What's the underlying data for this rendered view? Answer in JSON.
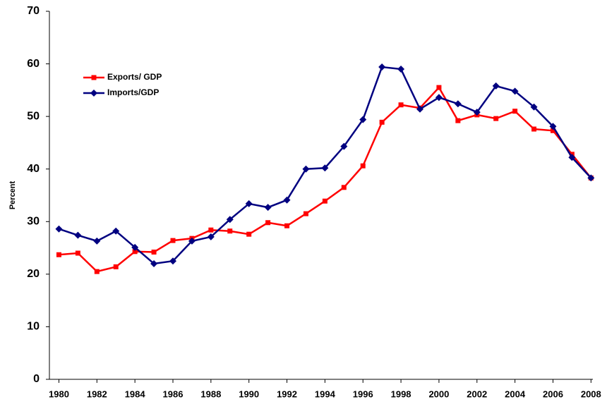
{
  "chart_data": {
    "type": "line",
    "y_label": "Percent",
    "x": [
      1980,
      1981,
      1982,
      1983,
      1984,
      1985,
      1986,
      1987,
      1988,
      1989,
      1990,
      1991,
      1992,
      1993,
      1994,
      1995,
      1996,
      1997,
      1998,
      1999,
      2000,
      2001,
      2002,
      2003,
      2004,
      2005,
      2006,
      2007,
      2008
    ],
    "series": [
      {
        "name": "Exports/ GDP",
        "color": "#ff0000",
        "marker": "square",
        "values": [
          23.7,
          24.0,
          20.5,
          21.4,
          24.3,
          24.2,
          26.4,
          26.8,
          28.4,
          28.2,
          27.6,
          29.8,
          29.2,
          31.5,
          33.9,
          36.5,
          40.6,
          48.9,
          52.2,
          51.6,
          55.5,
          49.2,
          50.3,
          49.6,
          51.0,
          47.6,
          47.3,
          42.8,
          38.3
        ]
      },
      {
        "name": "Imports/GDP",
        "color": "#000080",
        "marker": "diamond",
        "values": [
          28.6,
          27.4,
          26.3,
          28.2,
          25.1,
          22.0,
          22.5,
          26.3,
          27.1,
          30.4,
          33.4,
          32.7,
          34.1,
          40.0,
          40.2,
          44.3,
          49.4,
          59.4,
          59.0,
          51.4,
          53.6,
          52.4,
          50.8,
          55.8,
          54.8,
          51.8,
          48.1,
          42.2,
          38.3
        ]
      }
    ],
    "xlim": [
      1979.5,
      2008.1
    ],
    "xticks": [
      1980,
      1982,
      1984,
      1986,
      1988,
      1990,
      1992,
      1994,
      1996,
      1998,
      2000,
      2002,
      2004,
      2006,
      2008
    ],
    "ylim": [
      0,
      70
    ],
    "yticks": [
      0,
      10,
      20,
      30,
      40,
      50,
      60,
      70
    ],
    "grid": false,
    "legend": "upper-left"
  }
}
